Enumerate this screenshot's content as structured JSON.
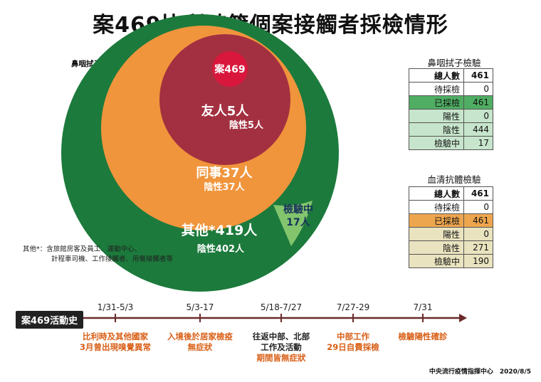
{
  "title": "案469比利時籍個案接觸者採檢情形",
  "chart_label": "鼻咽拭子檢驗圓形圖",
  "circles": {
    "case": "案469",
    "friends": {
      "label": "友人5人",
      "sub": "陰性5人"
    },
    "colleagues": {
      "label": "同事37人",
      "sub": "陰性37人"
    },
    "others": {
      "label": "其他*419人",
      "sub": "陰性402人"
    },
    "testing": {
      "label": "檢驗中",
      "sub": "17人"
    }
  },
  "note": {
    "line1": "其他*：含旅館房客及員工、運動中心、",
    "line2": "計程車司機、工作接觸者、用餐接觸者等"
  },
  "colors": {
    "dark_green": "#1c7a3c",
    "orange": "#f0953c",
    "maroon": "#a33040",
    "red": "#d9173d",
    "light_green": "#82c56d"
  },
  "nasal_table": {
    "title": "鼻咽拭子檢驗",
    "rows": [
      {
        "k": "總人數",
        "v": "461"
      },
      {
        "k": "待採檢",
        "v": "0"
      },
      {
        "k": "已採檢",
        "v": "461"
      },
      {
        "k": "陽性",
        "v": "0"
      },
      {
        "k": "陰性",
        "v": "444"
      },
      {
        "k": "檢驗中",
        "v": "17"
      }
    ]
  },
  "serum_table": {
    "title": "血清抗體檢驗",
    "rows": [
      {
        "k": "總人數",
        "v": "461"
      },
      {
        "k": "待採檢",
        "v": "0"
      },
      {
        "k": "已採檢",
        "v": "461"
      },
      {
        "k": "陽性",
        "v": "0"
      },
      {
        "k": "陰性",
        "v": "271"
      },
      {
        "k": "檢驗中",
        "v": "190"
      }
    ]
  },
  "timeline": {
    "label": "案469活動史",
    "events": [
      {
        "date": "1/31-5/3",
        "l1": "比利時及其他國家",
        "l2": "3月曾出現嗅覺異常",
        "l3": ""
      },
      {
        "date": "5/3-17",
        "l1": "入境後於居家檢疫",
        "l2": "無症狀",
        "l3": ""
      },
      {
        "date": "5/18-7/27",
        "l1": "往返中部、北部",
        "l2": "工作及活動",
        "l3": "期間皆無症狀"
      },
      {
        "date": "7/27-29",
        "l1": "中部工作",
        "l2": "29日自費採檢",
        "l3": ""
      },
      {
        "date": "7/31",
        "l1": "檢驗陽性確診",
        "l2": "",
        "l3": ""
      }
    ]
  },
  "footer": "中央流行疫情指揮中心　2020/8/5"
}
